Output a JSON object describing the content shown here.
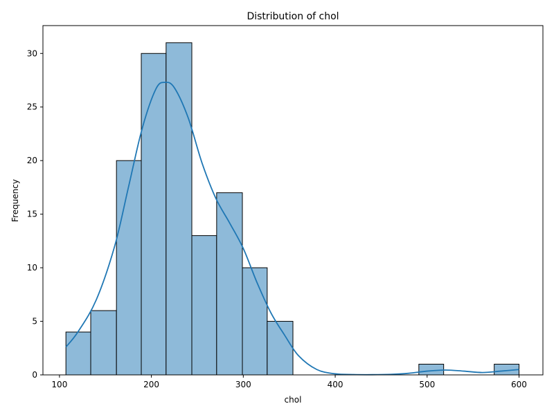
{
  "chart_data": {
    "type": "bar",
    "title": "Distribution of chol",
    "xlabel": "chol",
    "ylabel": "Frequency",
    "xlim": [
      82,
      626
    ],
    "ylim": [
      0,
      32.6
    ],
    "x_ticks": [
      100,
      200,
      300,
      400,
      500,
      600
    ],
    "y_ticks": [
      0,
      5,
      10,
      15,
      20,
      25,
      30
    ],
    "bins": [
      {
        "x0": 107,
        "x1": 134,
        "count": 4
      },
      {
        "x0": 134,
        "x1": 162,
        "count": 6
      },
      {
        "x0": 162,
        "x1": 189,
        "count": 20
      },
      {
        "x0": 189,
        "x1": 216,
        "count": 30
      },
      {
        "x0": 216,
        "x1": 244,
        "count": 31
      },
      {
        "x0": 244,
        "x1": 271,
        "count": 13
      },
      {
        "x0": 271,
        "x1": 299,
        "count": 17
      },
      {
        "x0": 299,
        "x1": 326,
        "count": 10
      },
      {
        "x0": 326,
        "x1": 354,
        "count": 5
      },
      {
        "x0": 354,
        "x1": 381,
        "count": 0
      },
      {
        "x0": 381,
        "x1": 408,
        "count": 0
      },
      {
        "x0": 408,
        "x1": 436,
        "count": 0
      },
      {
        "x0": 436,
        "x1": 463,
        "count": 0
      },
      {
        "x0": 463,
        "x1": 491,
        "count": 0
      },
      {
        "x0": 491,
        "x1": 518,
        "count": 1
      },
      {
        "x0": 518,
        "x1": 545,
        "count": 0
      },
      {
        "x0": 545,
        "x1": 573,
        "count": 0
      },
      {
        "x0": 573,
        "x1": 600,
        "count": 1
      }
    ],
    "kde": {
      "x": [
        107,
        120,
        140,
        160,
        175,
        190,
        205,
        215,
        225,
        240,
        255,
        270,
        285,
        300,
        315,
        330,
        345,
        360,
        380,
        400,
        420,
        440,
        460,
        480,
        500,
        520,
        540,
        560,
        580,
        600
      ],
      "y": [
        2.6,
        4.0,
        7.0,
        12.0,
        17.5,
        23.0,
        26.7,
        27.3,
        26.8,
        24.0,
        19.8,
        16.5,
        14.2,
        11.8,
        8.6,
        5.8,
        3.7,
        1.8,
        0.5,
        0.1,
        0.03,
        0.02,
        0.05,
        0.15,
        0.35,
        0.45,
        0.35,
        0.22,
        0.35,
        0.5
      ]
    },
    "grid": false,
    "colors": {
      "bar_fill": "#8ebad9",
      "bar_edge": "#000000",
      "kde_line": "#1f77b4"
    }
  }
}
